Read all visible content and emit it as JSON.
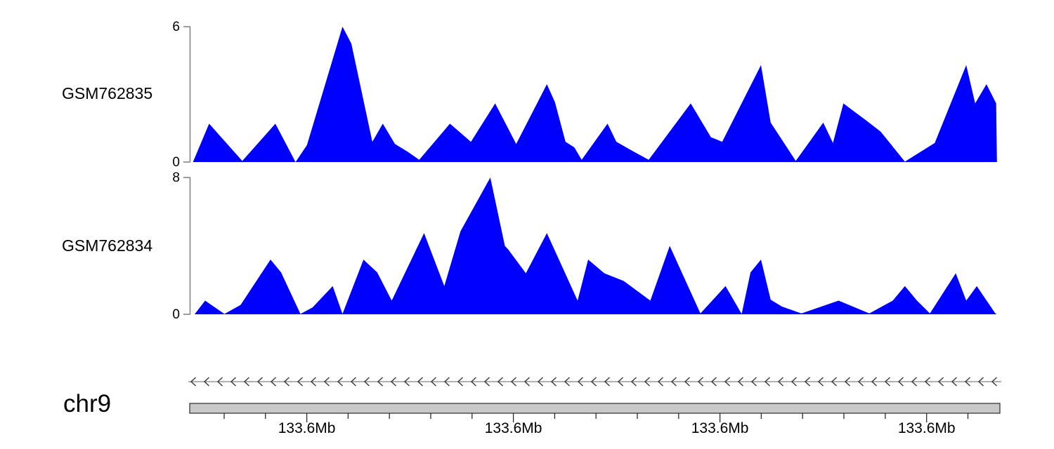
{
  "figure": {
    "background": "#ffffff",
    "description": "Genome browser coverage view with two signal tracks, a minus-strand gene arrow line, and a chromosome axis"
  },
  "chart_data": {
    "type": "area",
    "legend": "none",
    "grid": false,
    "tracks": [
      {
        "name": "GSM762835",
        "color": "#0000fe",
        "ylim": [
          0,
          6
        ],
        "ytick_top": "6",
        "ytick_bottom": "0",
        "points": [
          [
            0.004,
            0
          ],
          [
            0.024,
            1.7
          ],
          [
            0.065,
            0.05
          ],
          [
            0.106,
            1.7
          ],
          [
            0.131,
            0
          ],
          [
            0.145,
            0.75
          ],
          [
            0.189,
            6
          ],
          [
            0.2,
            5.25
          ],
          [
            0.226,
            0.9
          ],
          [
            0.239,
            1.7
          ],
          [
            0.254,
            0.8
          ],
          [
            0.27,
            0.45
          ],
          [
            0.284,
            0.1
          ],
          [
            0.322,
            1.7
          ],
          [
            0.348,
            0.9
          ],
          [
            0.378,
            2.6
          ],
          [
            0.404,
            0.8
          ],
          [
            0.442,
            3.45
          ],
          [
            0.452,
            2.65
          ],
          [
            0.465,
            0.9
          ],
          [
            0.476,
            0.65
          ],
          [
            0.485,
            0.1
          ],
          [
            0.517,
            1.7
          ],
          [
            0.528,
            0.9
          ],
          [
            0.55,
            0.45
          ],
          [
            0.568,
            0.1
          ],
          [
            0.62,
            2.6
          ],
          [
            0.645,
            1.1
          ],
          [
            0.659,
            0.9
          ],
          [
            0.707,
            4.3
          ],
          [
            0.719,
            1.75
          ],
          [
            0.75,
            0.05
          ],
          [
            0.784,
            1.75
          ],
          [
            0.796,
            0.85
          ],
          [
            0.809,
            2.6
          ],
          [
            0.82,
            2.3
          ],
          [
            0.837,
            1.85
          ],
          [
            0.855,
            1.35
          ],
          [
            0.885,
            0.02
          ],
          [
            0.922,
            0.85
          ],
          [
            0.961,
            4.3
          ],
          [
            0.972,
            2.6
          ],
          [
            0.986,
            3.45
          ],
          [
            0.998,
            2.6
          ],
          [
            0.999,
            0
          ]
        ]
      },
      {
        "name": "GSM762834",
        "color": "#0000fe",
        "ylim": [
          0,
          8
        ],
        "ytick_top": "8",
        "ytick_bottom": "0",
        "points": [
          [
            0.006,
            0
          ],
          [
            0.019,
            0.8
          ],
          [
            0.043,
            0.02
          ],
          [
            0.063,
            0.55
          ],
          [
            0.1,
            3.2
          ],
          [
            0.113,
            2.45
          ],
          [
            0.137,
            0.02
          ],
          [
            0.152,
            0.4
          ],
          [
            0.177,
            1.65
          ],
          [
            0.189,
            0.02
          ],
          [
            0.215,
            3.2
          ],
          [
            0.232,
            2.45
          ],
          [
            0.25,
            0.8
          ],
          [
            0.29,
            4.75
          ],
          [
            0.315,
            1.65
          ],
          [
            0.335,
            4.85
          ],
          [
            0.372,
            8
          ],
          [
            0.39,
            4
          ],
          [
            0.394,
            3.8
          ],
          [
            0.416,
            2.4
          ],
          [
            0.442,
            4.75
          ],
          [
            0.48,
            0.8
          ],
          [
            0.493,
            3.2
          ],
          [
            0.513,
            2.4
          ],
          [
            0.537,
            1.95
          ],
          [
            0.57,
            0.8
          ],
          [
            0.594,
            4
          ],
          [
            0.632,
            0.05
          ],
          [
            0.663,
            1.65
          ],
          [
            0.683,
            0.02
          ],
          [
            0.694,
            2.45
          ],
          [
            0.707,
            3.2
          ],
          [
            0.719,
            0.85
          ],
          [
            0.733,
            0.45
          ],
          [
            0.757,
            0.05
          ],
          [
            0.803,
            0.8
          ],
          [
            0.841,
            0.05
          ],
          [
            0.87,
            0.8
          ],
          [
            0.885,
            1.65
          ],
          [
            0.9,
            0.8
          ],
          [
            0.916,
            0.05
          ],
          [
            0.948,
            2.4
          ],
          [
            0.961,
            0.8
          ],
          [
            0.974,
            1.65
          ],
          [
            0.997,
            0.05
          ],
          [
            0.999,
            0
          ]
        ]
      }
    ],
    "gene_track": {
      "strand": "-",
      "arrow_direction": "left",
      "arrow_count": 61,
      "line_color": "#999999",
      "arrow_color": "#3d3d3d"
    },
    "genome_axis": {
      "chromosome": "chr9",
      "bar_fill": "#c9c9c9",
      "bar_border": "#2b2b2b",
      "tick_count": 19,
      "tick_start_fraction": 0.0425,
      "tick_spacing_fraction": 0.051,
      "major_every": 5,
      "major_offset": 2,
      "major_tick_labels": [
        "133.6Mb",
        "133.6Mb",
        "133.6Mb",
        "133.6Mb"
      ]
    },
    "axis_line_color": "#858585"
  }
}
